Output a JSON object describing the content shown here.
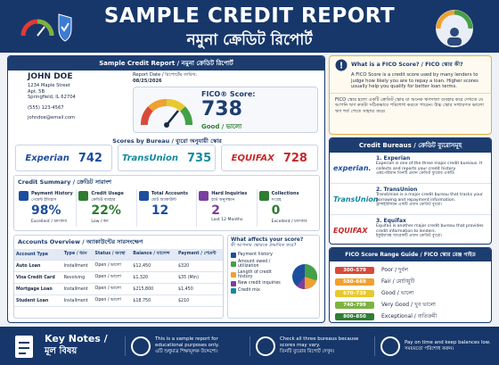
{
  "header": {
    "title": "SAMPLE CREDIT REPORT",
    "subtitle": "নমুনা ক্রেডিট রিপোর্ট"
  },
  "report": {
    "title": "Sample Credit Report / নমুনা ক্রেডিট রিপোর্ট",
    "name": "JOHN DOE",
    "address": [
      "1234 Maple Street",
      "Apt. 5B",
      "Springfield, IL 62704"
    ],
    "phone": "(555) 123-4567",
    "email": "johndoe@email.com",
    "date_label": "Report Date / রিপোর্টের তারিখ:",
    "date": "08/25/2026",
    "score_label": "FICO® Score:",
    "score": "738",
    "score_rating": "Good / ভালো"
  },
  "bureau_scores": {
    "title": "Scores by Bureau / ব্যুরো অনুযায়ী স্কোর",
    "items": [
      {
        "name": "Experian",
        "score": "742",
        "color": "#1d4e9e"
      },
      {
        "name": "TransUnion",
        "score": "735",
        "color": "#138a9e"
      },
      {
        "name": "EQUIFAX",
        "score": "728",
        "color": "#c62828"
      }
    ]
  },
  "summary": {
    "title": "Credit Summary / ক্রেডিট সারাংশ",
    "items": [
      {
        "label": "Payment History",
        "label_bn": "পেমেন্ট ইতিহাস",
        "value": "98%",
        "note": "Excellent / চমৎকার",
        "color": "#1d4e9e"
      },
      {
        "label": "Credit Usage",
        "label_bn": "ক্রেডিট ব্যবহার",
        "value": "22%",
        "note": "Low / কম",
        "color": "#2e7d32"
      },
      {
        "label": "Total Accounts",
        "label_bn": "মোট অ্যাকাউন্ট",
        "value": "12",
        "color": "#1d4e9e"
      },
      {
        "label": "Hard Inquiries",
        "label_bn": "হার্ড অনুসন্ধান",
        "value": "2",
        "note": "Last 12 Months",
        "color": "#7b3fa0"
      },
      {
        "label": "Collections",
        "label_bn": "সংগ্রহ",
        "value": "0",
        "note": "Excellent / চমৎকার",
        "color": "#2e7d32"
      }
    ]
  },
  "accounts": {
    "title": "Accounts Overview / অ্যাকাউন্টের সারসংক্ষেপ",
    "columns": [
      "Account Type",
      "Type / ধরন",
      "Status / অবস্থা",
      "Balance / ব্যালেন্স",
      "Payment / পেমেন্ট"
    ],
    "rows": [
      [
        "Auto Loan",
        "Installment",
        "Open / ভালো",
        "$12,450",
        "$320"
      ],
      [
        "Visa Credit Card",
        "Revolving",
        "Open / ভালো",
        "$1,320",
        "$35 (Min)"
      ],
      [
        "Mortgage Loan",
        "Installment",
        "Open / ভালো",
        "$215,800",
        "$1,450"
      ],
      [
        "Student Loan",
        "Installment",
        "Open / ভালো",
        "$18,750",
        "$210"
      ]
    ]
  },
  "factors": {
    "title": "What affects your score?",
    "subtitle": "কী আপনার স্কোরকে প্রভাবিত করে?",
    "items": [
      "Payment history",
      "Amount owed / utilization",
      "Length of credit history",
      "New credit inquiries",
      "Credit mix"
    ]
  },
  "fico_info": {
    "title": "What is a FICO Score? / FICO স্কোর কী?",
    "text": "A FICO Score is a credit score used by many lenders to judge how likely you are to repay a loan. Higher scores usually help you qualify for better loan terms.",
    "text_bn": "FICO স্কোর হলো একটি ক্রেডিট স্কোর যা অনেক ঋণদাতা ব্যবহার করে দেখতে যে আপনি ঋণ কতটা সঠিকভাবে পরিশোধ করতে পারেন। উচ্চ স্কোর সাধারণত ভালো ঋণ শর্ত পেতে সাহায্য করে।"
  },
  "bureaus": {
    "title": "Credit Bureaus / ক্রেডিট ব্যুরোসমূহ",
    "items": [
      {
        "logo": "experian.",
        "color": "#1d4e9e",
        "name": "1. Experian",
        "text": "Experian is one of the three major credit bureaus. It collects and reports your credit history.",
        "text_bn": "এক্সপেরিয়ান তিনটি প্রধান ক্রেডিট ব্যুরোর একটি।"
      },
      {
        "logo": "TransUnion",
        "color": "#138a9e",
        "name": "2. TransUnion",
        "text": "TransUnion is a major credit bureau that tracks your borrowing and repayment information.",
        "text_bn": "ট্রান্সইউনিয়ন একটি প্রধান ক্রেডিট ব্যুরো।"
      },
      {
        "logo": "EQUIFAX",
        "color": "#c62828",
        "name": "3. Equifax",
        "text": "Equifax is another major credit bureau that provides credit information to lenders.",
        "text_bn": "ইকুইফ্যাক্স আরেকটি প্রধান ক্রেডিট ব্যুরো।"
      }
    ]
  },
  "ranges": {
    "title": "FICO Score Range Guide / FICO স্কোর রেঞ্জ গাইড",
    "items": [
      {
        "range": "300–579",
        "label": "Poor / দুর্বল",
        "color": "#d84a3a"
      },
      {
        "range": "580–669",
        "label": "Fair / মোটামুটি",
        "color": "#f0a030"
      },
      {
        "range": "670–739",
        "label": "Good / ভালো",
        "color": "#e8c830"
      },
      {
        "range": "740–799",
        "label": "Very Good / খুব ভালো",
        "color": "#7cb342"
      },
      {
        "range": "800–850",
        "label": "Exceptional / ব্যতিক্রমী",
        "color": "#2e7d32"
      }
    ]
  },
  "key_notes": {
    "title": "Key Notes /",
    "title_bn": "মূল বিষয়",
    "items": [
      {
        "text": "This is a sample report for educational purposes only.",
        "text_bn": "এটি শুধুমাত্র শিক্ষামূলক উদ্দেশ্যে।"
      },
      {
        "text": "Check all three bureaus because scores may vary.",
        "text_bn": "তিনটি ব্যুরোর রিপোর্ট দেখুন।"
      },
      {
        "text": "Pay on time and keep balances low.",
        "text_bn": "সময়মতো পরিশোধ করুন।"
      }
    ]
  }
}
